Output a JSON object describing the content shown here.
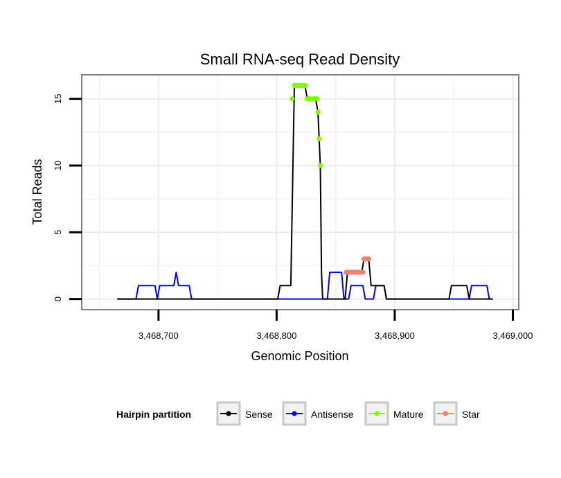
{
  "chart_data": {
    "type": "line",
    "title": "Small RNA-seq Read Density",
    "xlabel": "Genomic Position",
    "ylabel": "Total Reads",
    "xlim": [
      3468635,
      3469005
    ],
    "ylim": [
      -0.8,
      16.8
    ],
    "x_ticks": [
      {
        "value": 3468700,
        "label": "3,468,700"
      },
      {
        "value": 3468800,
        "label": "3,468,800"
      },
      {
        "value": 3468900,
        "label": "3,468,900"
      },
      {
        "value": 3469000,
        "label": "3,469,000"
      }
    ],
    "y_ticks": [
      {
        "value": 0,
        "label": "0"
      },
      {
        "value": 5,
        "label": "5"
      },
      {
        "value": 10,
        "label": "10"
      },
      {
        "value": 15,
        "label": "15"
      }
    ],
    "grid": true,
    "legend": {
      "title": "Hairpin partition",
      "position": "bottom",
      "entries": [
        {
          "name": "Sense",
          "color": "#000000"
        },
        {
          "name": "Antisense",
          "color": "#0000ff"
        },
        {
          "name": "Mature",
          "color": "#7fff00"
        },
        {
          "name": "Star",
          "color": "#f08070"
        }
      ]
    },
    "series": [
      {
        "name": "Antisense",
        "color": "#0000ff",
        "style": "line",
        "points": [
          [
            3468665,
            0
          ],
          [
            3468681,
            0
          ],
          [
            3468683,
            1
          ],
          [
            3468697,
            1
          ],
          [
            3468699,
            0
          ],
          [
            3468701,
            1
          ],
          [
            3468713,
            1
          ],
          [
            3468715,
            2
          ],
          [
            3468717,
            1
          ],
          [
            3468726,
            1
          ],
          [
            3468728,
            0
          ],
          [
            3468843,
            0
          ],
          [
            3468845,
            2
          ],
          [
            3468855,
            2
          ],
          [
            3468857,
            0
          ],
          [
            3468861,
            0
          ],
          [
            3468863,
            1
          ],
          [
            3468873,
            1
          ],
          [
            3468875,
            0
          ],
          [
            3468882,
            0
          ],
          [
            3468884,
            1
          ],
          [
            3468891,
            1
          ],
          [
            3468893,
            0
          ],
          [
            3468963,
            0
          ],
          [
            3468965,
            1
          ],
          [
            3468978,
            1
          ],
          [
            3468980,
            0
          ],
          [
            3468983,
            0
          ]
        ]
      },
      {
        "name": "Sense",
        "color": "#000000",
        "style": "line",
        "points": [
          [
            3468665,
            0
          ],
          [
            3468801,
            0
          ],
          [
            3468803,
            1
          ],
          [
            3468812,
            1
          ],
          [
            3468815,
            16
          ],
          [
            3468824,
            16
          ],
          [
            3468826,
            15
          ],
          [
            3468833,
            15
          ],
          [
            3468835,
            14
          ],
          [
            3468836,
            12
          ],
          [
            3468837,
            10
          ],
          [
            3468838,
            2
          ],
          [
            3468839,
            0
          ],
          [
            3468858,
            0
          ],
          [
            3468860,
            2
          ],
          [
            3468872,
            2
          ],
          [
            3468874,
            3
          ],
          [
            3468878,
            3
          ],
          [
            3468880,
            1
          ],
          [
            3468891,
            1
          ],
          [
            3468893,
            0
          ],
          [
            3468946,
            0
          ],
          [
            3468948,
            1
          ],
          [
            3468961,
            1
          ],
          [
            3468963,
            0
          ],
          [
            3468983,
            0
          ]
        ]
      },
      {
        "name": "Mature",
        "color": "#7fff00",
        "style": "points",
        "points": [
          [
            3468813,
            15
          ],
          [
            3468815,
            16
          ],
          [
            3468816,
            16
          ],
          [
            3468817,
            16
          ],
          [
            3468818,
            16
          ],
          [
            3468819,
            16
          ],
          [
            3468820,
            16
          ],
          [
            3468821,
            16
          ],
          [
            3468822,
            16
          ],
          [
            3468823,
            16
          ],
          [
            3468824,
            16
          ],
          [
            3468826,
            15
          ],
          [
            3468827,
            15
          ],
          [
            3468828,
            15
          ],
          [
            3468829,
            15
          ],
          [
            3468830,
            15
          ],
          [
            3468831,
            15
          ],
          [
            3468832,
            15
          ],
          [
            3468833,
            15
          ],
          [
            3468834,
            15
          ],
          [
            3468835,
            14
          ],
          [
            3468836,
            12
          ],
          [
            3468837,
            10
          ]
        ]
      },
      {
        "name": "Star",
        "color": "#f08070",
        "style": "points",
        "points": [
          [
            3468859,
            2
          ],
          [
            3468860,
            2
          ],
          [
            3468861,
            2
          ],
          [
            3468862,
            2
          ],
          [
            3468863,
            2
          ],
          [
            3468864,
            2
          ],
          [
            3468865,
            2
          ],
          [
            3468866,
            2
          ],
          [
            3468867,
            2
          ],
          [
            3468868,
            2
          ],
          [
            3468869,
            2
          ],
          [
            3468870,
            2
          ],
          [
            3468871,
            2
          ],
          [
            3468872,
            2
          ],
          [
            3468873,
            2
          ],
          [
            3468874,
            3
          ],
          [
            3468875,
            3
          ],
          [
            3468876,
            3
          ],
          [
            3468877,
            3
          ],
          [
            3468878,
            3
          ]
        ]
      }
    ]
  }
}
